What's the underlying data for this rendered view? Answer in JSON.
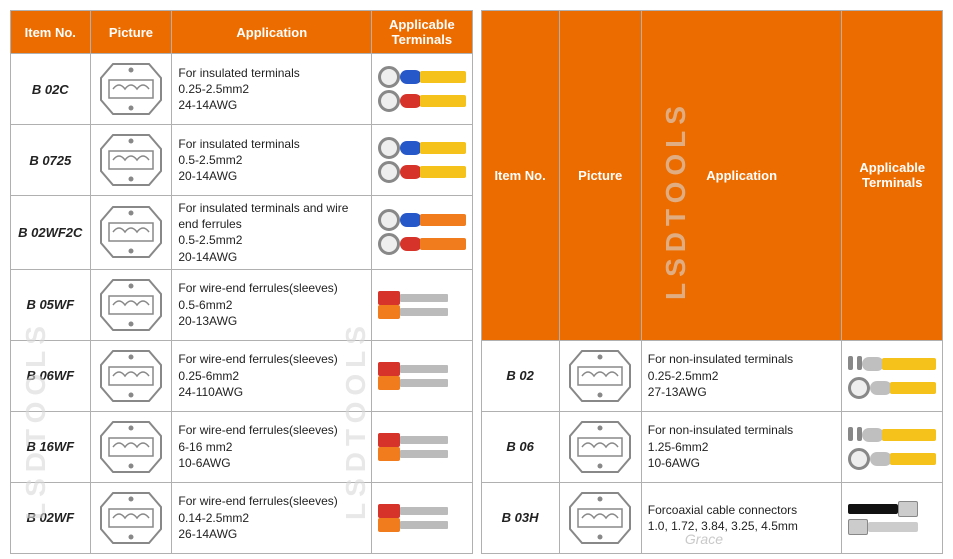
{
  "colors": {
    "header_bg": "#ec6c00",
    "header_fg": "#ffffff",
    "border": "#b0b0b0",
    "cable_yellow": "#f4c21a",
    "cable_orange": "#f07c1e",
    "cable_blue": "#2a5fd1",
    "ins_blue": "#2658c9",
    "ins_red": "#d6332a",
    "metal": "#bfbfbf",
    "black": "#111111"
  },
  "headers": {
    "item": "Item No.",
    "picture": "Picture",
    "application": "Application",
    "terminals": "Applicable Terminals"
  },
  "left": {
    "rows": [
      {
        "item": "B 02C",
        "app": [
          "For insulated terminals",
          "0.25-2.5mm2",
          "24-14AWG"
        ],
        "term_kind": "ring_insulated",
        "term_colors": [
          "#2658c9",
          "#d6332a"
        ],
        "cable": "#f4c21a"
      },
      {
        "item": "B 0725",
        "app": [
          "For insulated terminals",
          "0.5-2.5mm2",
          "20-14AWG"
        ],
        "term_kind": "ring_insulated",
        "term_colors": [
          "#2658c9",
          "#d6332a"
        ],
        "cable": "#f4c21a"
      },
      {
        "item": "B 02WF2C",
        "app": [
          "For insulated terminals and wire end ferrules",
          "0.5-2.5mm2",
          "20-14AWG"
        ],
        "term_kind": "ring_insulated",
        "term_colors": [
          "#2658c9",
          "#d6332a"
        ],
        "cable": "#f07c1e"
      },
      {
        "item": "B 05WF",
        "app": [
          "For wire-end ferrules(sleeves)",
          "0.5-6mm2",
          "20-13AWG"
        ],
        "term_kind": "ferrule",
        "term_colors": [
          "#d6332a",
          "#f07c1e"
        ],
        "cable": "#2a5fd1"
      },
      {
        "item": "B 06WF",
        "app": [
          "For wire-end ferrules(sleeves)",
          "0.25-6mm2",
          "24-110AWG"
        ],
        "term_kind": "ferrule",
        "term_colors": [
          "#d6332a",
          "#f07c1e"
        ],
        "cable": "#2a5fd1"
      },
      {
        "item": "B 16WF",
        "app": [
          "For wire-end ferrules(sleeves)",
          "6-16 mm2",
          "10-6AWG"
        ],
        "term_kind": "ferrule",
        "term_colors": [
          "#d6332a",
          "#f07c1e"
        ],
        "cable": "#2a5fd1"
      },
      {
        "item": "B 02WF",
        "app": [
          "For wire-end ferrules(sleeves)",
          "0.14-2.5mm2",
          "26-14AWG"
        ],
        "term_kind": "ferrule",
        "term_colors": [
          "#d6332a",
          "#f07c1e"
        ],
        "cable": "#2a5fd1"
      }
    ]
  },
  "right": {
    "rows": [
      {
        "item": "B 02",
        "app": [
          "For non-insulated terminals",
          "0.25-2.5mm2",
          "27-13AWG"
        ],
        "term_kind": "fork_bare",
        "term_colors": [
          "#bfbfbf",
          "#bfbfbf"
        ],
        "cable": "#f4c21a"
      },
      {
        "item": "B 06",
        "app": [
          "For non-insulated terminals",
          "1.25-6mm2",
          "10-6AWG"
        ],
        "term_kind": "fork_bare",
        "term_colors": [
          "#bfbfbf",
          "#bfbfbf"
        ],
        "cable": "#f4c21a"
      },
      {
        "item": "B 03H",
        "app": [
          "Forcoaxial cable connectors",
          "1.0, 1.72, 3.84, 3.25, 4.5mm"
        ],
        "term_kind": "coax",
        "term_colors": [
          "#111111",
          "#cccccc"
        ],
        "cable": "#111111"
      }
    ]
  },
  "watermark": "LSDTOOLS",
  "signature": "Grace"
}
